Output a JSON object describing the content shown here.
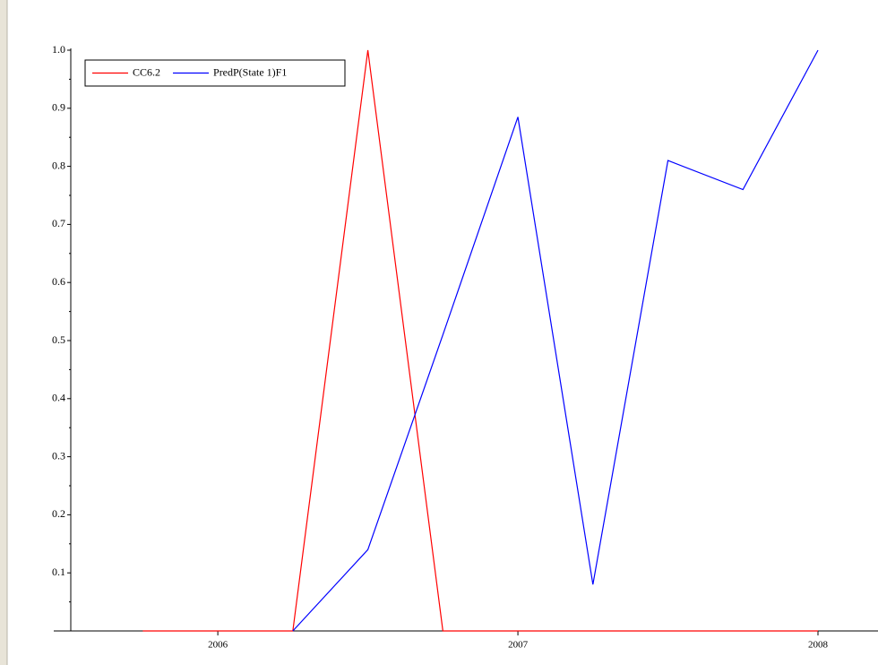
{
  "chart_data": {
    "type": "line",
    "x": [
      2005.75,
      2006,
      2006.25,
      2006.5,
      2006.75,
      2007,
      2007.25,
      2007.5,
      2007.75,
      2008
    ],
    "series": [
      {
        "name": "CC6.2",
        "color": "#ff0000",
        "values": [
          0,
          0,
          0,
          1,
          0,
          0,
          0,
          0,
          0,
          0
        ]
      },
      {
        "name": "PredP(State 1)F1",
        "color": "#0000ff",
        "values": [
          null,
          null,
          0,
          0.14,
          0.51,
          0.885,
          0.08,
          0.81,
          0.76,
          1
        ]
      }
    ],
    "xlim": [
      2005.51,
      2008.2
    ],
    "xticks": [
      2006,
      2007,
      2008
    ],
    "ylim": [
      0,
      1
    ],
    "yticks": [
      0.1,
      0.2,
      0.3,
      0.4,
      0.5,
      0.6,
      0.7,
      0.8,
      0.9,
      {
        "value": 1,
        "label": "1.0"
      }
    ],
    "legend": "upper-left"
  }
}
